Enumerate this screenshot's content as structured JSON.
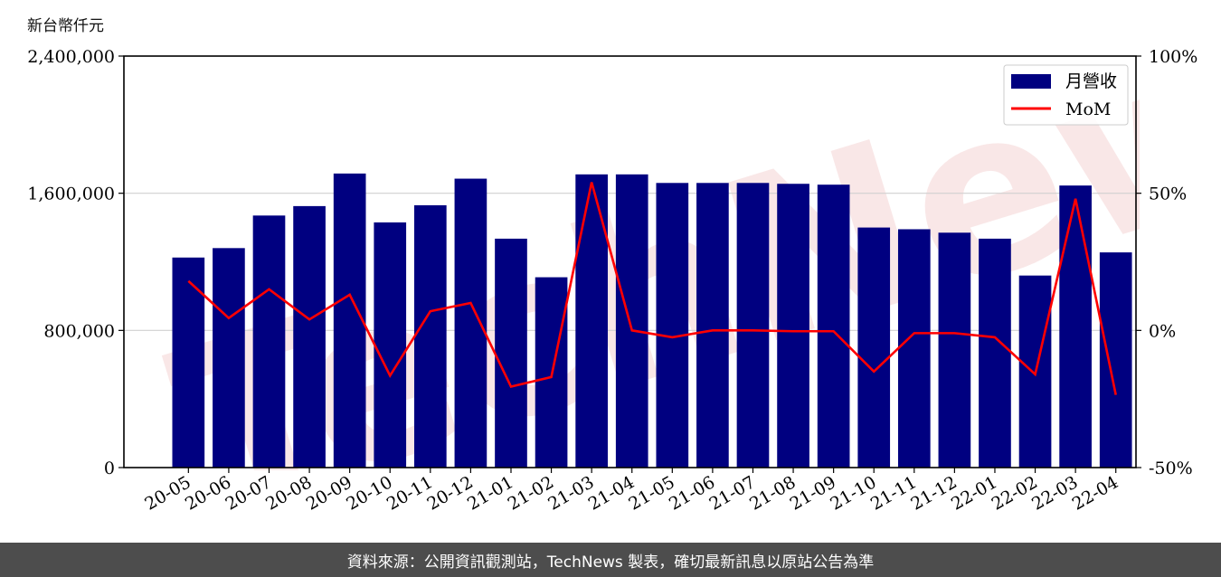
{
  "unit_label": "新台幣仟元",
  "footer_text": "資料來源：公開資訊觀測站，TechNews 製表，確切最新訊息以原站公告為準",
  "watermark_text": "TechNews",
  "colors": {
    "bar": "#000080",
    "line": "#ff0000",
    "grid": "#d0d0d0",
    "footer_bg": "#4d4d4d"
  },
  "chart_data": {
    "type": "bar",
    "categories": [
      "20-05",
      "20-06",
      "20-07",
      "20-08",
      "20-09",
      "20-10",
      "20-11",
      "20-12",
      "21-01",
      "21-02",
      "21-03",
      "21-04",
      "21-05",
      "21-06",
      "21-07",
      "21-08",
      "21-09",
      "21-10",
      "21-11",
      "21-12",
      "22-01",
      "22-02",
      "22-03",
      "22-04"
    ],
    "series": [
      {
        "name": "月營收",
        "type": "bar",
        "axis": "left",
        "values": [
          1225000,
          1280000,
          1470000,
          1525000,
          1715000,
          1430000,
          1530000,
          1685000,
          1335000,
          1110000,
          1710000,
          1710000,
          1660000,
          1660000,
          1660000,
          1655000,
          1650000,
          1400000,
          1390000,
          1370000,
          1335000,
          1120000,
          1645000,
          1255000
        ]
      },
      {
        "name": "MoM",
        "type": "line",
        "axis": "right",
        "unit": "%",
        "values": [
          18,
          4.5,
          15,
          4,
          13,
          -16.5,
          7,
          10,
          -20.5,
          -17,
          54,
          0,
          -2.5,
          0,
          0,
          -0.3,
          -0.3,
          -15,
          -1,
          -1,
          -2.5,
          -16,
          48,
          -23.5
        ]
      }
    ],
    "y_left": {
      "ylim": [
        0,
        2400000
      ],
      "ticks": [
        "0",
        "800,000",
        "1,600,000",
        "2,400,000"
      ],
      "tick_values": [
        0,
        800000,
        1600000,
        2400000
      ]
    },
    "y_right": {
      "ylim": [
        -50,
        100
      ],
      "ticks": [
        "-50%",
        "0%",
        "50%",
        "100%"
      ],
      "tick_values": [
        -50,
        0,
        50,
        100
      ]
    },
    "grid": "horizontal",
    "legend": {
      "placement": "top-right",
      "entries": [
        "月營收",
        "MoM"
      ]
    }
  }
}
